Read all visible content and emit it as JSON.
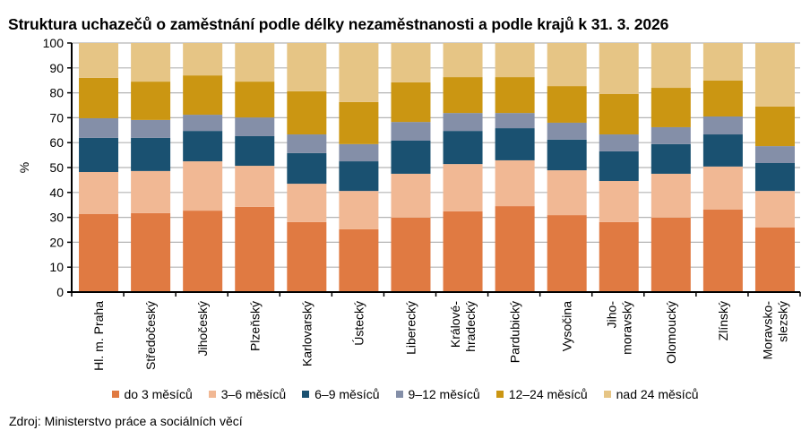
{
  "chart_data": {
    "type": "bar",
    "stacked": true,
    "title": "Struktura uchazečů o zaměstnání podle délky nezaměstnanosti a podle krajů k 31. 3. 2026",
    "xlabel": "",
    "ylabel": "%",
    "ylim": [
      0,
      100
    ],
    "yticks": [
      0,
      10,
      20,
      30,
      40,
      50,
      60,
      70,
      80,
      90,
      100
    ],
    "grid": true,
    "legend_position": "bottom",
    "categories": [
      [
        "Hl. m. Praha"
      ],
      [
        "Středočeský"
      ],
      [
        "Jihočeský"
      ],
      [
        "Plzeňský"
      ],
      [
        "Karlovarský"
      ],
      [
        "Ústecký"
      ],
      [
        "Liberecký"
      ],
      [
        "Královéhradecký"
      ],
      [
        "Pardubický"
      ],
      [
        "Vysočina"
      ],
      [
        "Jihomoravský"
      ],
      [
        "Olomoucký"
      ],
      [
        "Zlínský"
      ],
      [
        "Moravskoslezský"
      ]
    ],
    "category_labels": [
      [
        "Hl. m. Praha"
      ],
      [
        "Středočeský"
      ],
      [
        "Jihočeský"
      ],
      [
        "Plzeňský"
      ],
      [
        "Karlovarský"
      ],
      [
        "Ústecký"
      ],
      [
        "Liberecký"
      ],
      [
        "Královéhradecký",
        "Královéhradecký"
      ],
      [
        "Pardubický"
      ],
      [
        "Vysočina"
      ],
      [
        "Jihomoravský"
      ],
      [
        "Olomoucký"
      ],
      [
        "Zlínský"
      ],
      [
        "Moravskoslezský"
      ]
    ],
    "tick_labels": [
      [
        "Hl. m. Praha"
      ],
      [
        "Středočeský"
      ],
      [
        "Jihočeský"
      ],
      [
        "Plzeňský"
      ],
      [
        "Karlovarský"
      ],
      [
        "Ústecký"
      ],
      [
        "Liberecký"
      ],
      [
        "Králové-",
        "hradecký"
      ],
      [
        "Pardubický"
      ],
      [
        "Vysočina"
      ],
      [
        "Jiho-",
        "moravský"
      ],
      [
        "Olomoucký"
      ],
      [
        "Zlínský"
      ],
      [
        "Moravsko-",
        "slezský"
      ]
    ],
    "series": [
      {
        "name": "do 3 měsíců",
        "color": "#E07A42",
        "values": [
          31.3,
          31.7,
          32.7,
          34.2,
          28.1,
          25.2,
          29.9,
          32.4,
          34.5,
          30.9,
          28.1,
          29.9,
          33.1,
          25.9
        ]
      },
      {
        "name": "3–6 měsíců",
        "color": "#F1B894",
        "values": [
          16.9,
          16.9,
          19.8,
          16.5,
          15.4,
          15.4,
          17.6,
          19.0,
          18.4,
          18.0,
          16.5,
          17.6,
          17.3,
          14.7
        ]
      },
      {
        "name": "6–9 měsíců",
        "color": "#1A5171",
        "values": [
          13.7,
          13.3,
          12.2,
          11.9,
          12.3,
          11.9,
          13.3,
          13.3,
          12.9,
          12.3,
          11.9,
          11.9,
          12.9,
          11.2
        ]
      },
      {
        "name": "9–12 měsíců",
        "color": "#848FA8",
        "values": [
          7.9,
          7.2,
          6.5,
          7.5,
          7.5,
          6.9,
          7.5,
          7.2,
          6.1,
          6.8,
          6.8,
          6.8,
          7.2,
          6.8
        ]
      },
      {
        "name": "12–24 měsíců",
        "color": "#CB9612",
        "values": [
          16.2,
          15.4,
          15.8,
          14.4,
          17.3,
          16.9,
          15.9,
          14.4,
          14.4,
          14.7,
          16.2,
          15.8,
          14.4,
          15.9
        ]
      },
      {
        "name": "nad 24 měsíců",
        "color": "#E6C585",
        "values": [
          14.0,
          15.5,
          13.0,
          15.5,
          19.4,
          23.7,
          15.8,
          13.7,
          13.7,
          17.3,
          20.5,
          18.0,
          15.1,
          25.5
        ]
      }
    ]
  },
  "source": "Zdroj: Ministerstvo práce a sociálních věcí"
}
